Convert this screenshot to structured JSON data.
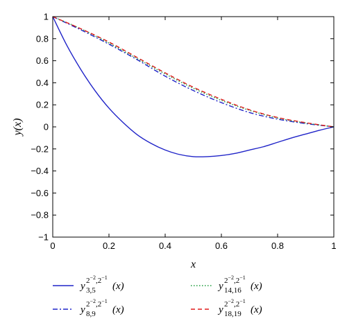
{
  "chart_data": {
    "type": "line",
    "xlabel": "x",
    "ylabel": "y(x)",
    "xlim": [
      0,
      1
    ],
    "ylim": [
      -1,
      1
    ],
    "xticks": [
      0,
      0.2,
      0.4,
      0.6,
      0.8,
      1
    ],
    "xtick_labels": [
      "0",
      "0.2",
      "0.4",
      "0.6",
      "0.8",
      "1"
    ],
    "yticks": [
      -1,
      -0.8,
      -0.6,
      -0.4,
      -0.2,
      0,
      0.2,
      0.4,
      0.6,
      0.8,
      1
    ],
    "ytick_labels": [
      "−1",
      "−0.8",
      "−0.6",
      "−0.4",
      "−0.2",
      "0",
      "0.2",
      "0.4",
      "0.6",
      "0.8",
      "1"
    ],
    "grid": false,
    "legend_position": "bottom",
    "series": [
      {
        "name": "y_{3,5}^{2^{-2},2^{-1}}(x)",
        "legend": {
          "base": "y",
          "sub": "3,5",
          "sup": "2",
          "sup_exp1": "−2",
          "sup_mid": ",2",
          "sup_exp2": "−1",
          "arg": "(x)"
        },
        "color": "#1f23c8",
        "dash": "solid",
        "x": [
          0,
          0.05,
          0.1,
          0.15,
          0.2,
          0.25,
          0.3,
          0.35,
          0.4,
          0.45,
          0.5,
          0.55,
          0.6,
          0.65,
          0.7,
          0.75,
          0.8,
          0.85,
          0.9,
          0.95,
          1
        ],
        "y": [
          1,
          0.74,
          0.52,
          0.33,
          0.17,
          0.04,
          -0.07,
          -0.15,
          -0.21,
          -0.25,
          -0.27,
          -0.27,
          -0.26,
          -0.24,
          -0.21,
          -0.18,
          -0.14,
          -0.1,
          -0.065,
          -0.03,
          0
        ]
      },
      {
        "name": "y_{8,9}^{2^{-2},2^{-1}}(x)",
        "legend": {
          "base": "y",
          "sub": "8,9",
          "sup": "2",
          "sup_exp1": "−2",
          "sup_mid": ",2",
          "sup_exp2": "−1",
          "arg": "(x)"
        },
        "color": "#1f23c8",
        "dash": "dashdot",
        "x": [
          0,
          0.1,
          0.2,
          0.3,
          0.4,
          0.5,
          0.6,
          0.7,
          0.8,
          0.9,
          1
        ],
        "y": [
          1,
          0.88,
          0.75,
          0.61,
          0.46,
          0.33,
          0.22,
          0.13,
          0.07,
          0.03,
          0
        ]
      },
      {
        "name": "y_{14,16}^{2^{-2},2^{-1}}(x)",
        "legend": {
          "base": "y",
          "sub": "14,16",
          "sup": "2",
          "sup_exp1": "−2",
          "sup_mid": ",2",
          "sup_exp2": "−1",
          "arg": "(x)"
        },
        "color": "#1a9a3a",
        "dash": "dotted",
        "x": [
          0,
          0.1,
          0.2,
          0.3,
          0.4,
          0.5,
          0.6,
          0.7,
          0.8,
          0.9,
          1
        ],
        "y": [
          1,
          0.89,
          0.76,
          0.62,
          0.48,
          0.35,
          0.24,
          0.15,
          0.08,
          0.035,
          0
        ]
      },
      {
        "name": "y_{18,19}^{2^{-2},2^{-1}}(x)",
        "legend": {
          "base": "y",
          "sub": "18,19",
          "sup": "2",
          "sup_exp1": "−2",
          "sup_mid": ",2",
          "sup_exp2": "−1",
          "arg": "(x)"
        },
        "color": "#e01c1c",
        "dash": "dashed",
        "x": [
          0,
          0.1,
          0.2,
          0.3,
          0.4,
          0.5,
          0.6,
          0.7,
          0.8,
          0.9,
          1
        ],
        "y": [
          1,
          0.89,
          0.77,
          0.63,
          0.49,
          0.36,
          0.25,
          0.155,
          0.085,
          0.038,
          0
        ]
      }
    ]
  }
}
